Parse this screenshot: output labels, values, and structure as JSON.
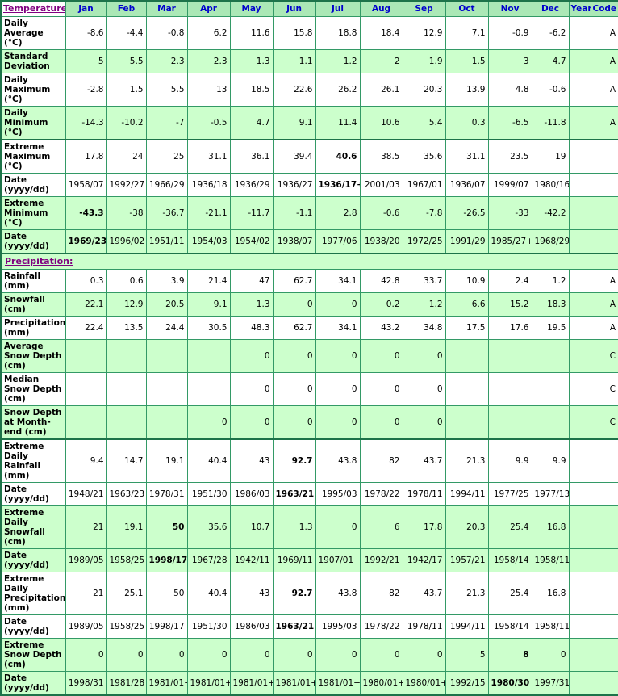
{
  "colors": {
    "frame_border": "#1d7349",
    "cell_border": "#339966",
    "header_bg": "#abe8b6",
    "stripe_bg": "#ccffcc",
    "label_blue": "#0000cc",
    "section_title_purple": "#800080"
  },
  "header": {
    "title": "Temperature:",
    "months": [
      "Jan",
      "Feb",
      "Mar",
      "Apr",
      "May",
      "Jun",
      "Jul",
      "Aug",
      "Sep",
      "Oct",
      "Nov",
      "Dec"
    ],
    "year": "Year",
    "code": "Code"
  },
  "sections": [
    {
      "id": "temperature",
      "rows": [
        {
          "label": "Daily Average (°C)",
          "shaded": false,
          "values": [
            "-8.6",
            "-4.4",
            "-0.8",
            "6.2",
            "11.6",
            "15.8",
            "18.8",
            "18.4",
            "12.9",
            "7.1",
            "-0.9",
            "-6.2"
          ],
          "year": "",
          "code": "A",
          "bold": [],
          "thick_top": false
        },
        {
          "label": "Standard Deviation",
          "shaded": true,
          "values": [
            "5",
            "5.5",
            "2.3",
            "2.3",
            "1.3",
            "1.1",
            "1.2",
            "2",
            "1.9",
            "1.5",
            "3",
            "4.7"
          ],
          "year": "",
          "code": "A",
          "bold": [],
          "thick_top": false
        },
        {
          "label": "Daily Maximum (°C)",
          "shaded": false,
          "values": [
            "-2.8",
            "1.5",
            "5.5",
            "13",
            "18.5",
            "22.6",
            "26.2",
            "26.1",
            "20.3",
            "13.9",
            "4.8",
            "-0.6"
          ],
          "year": "",
          "code": "A",
          "bold": [],
          "thick_top": false
        },
        {
          "label": "Daily Minimum (°C)",
          "shaded": true,
          "values": [
            "-14.3",
            "-10.2",
            "-7",
            "-0.5",
            "4.7",
            "9.1",
            "11.4",
            "10.6",
            "5.4",
            "0.3",
            "-6.5",
            "-11.8"
          ],
          "year": "",
          "code": "A",
          "bold": [],
          "thick_top": false
        },
        {
          "label": "Extreme Maximum (°C)",
          "shaded": false,
          "values": [
            "17.8",
            "24",
            "25",
            "31.1",
            "36.1",
            "39.4",
            "40.6",
            "38.5",
            "35.6",
            "31.1",
            "23.5",
            "19"
          ],
          "year": "",
          "code": "",
          "bold": [
            6
          ],
          "thick_top": true
        },
        {
          "label": "Date (yyyy/dd)",
          "shaded": false,
          "values": [
            "1958/07",
            "1992/27",
            "1966/29",
            "1936/18",
            "1936/29",
            "1936/27",
            "1936/17+",
            "2001/03",
            "1967/01",
            "1936/07",
            "1999/07",
            "1980/16"
          ],
          "year": "",
          "code": "",
          "bold": [
            6
          ],
          "thick_top": false
        },
        {
          "label": "Extreme Minimum (°C)",
          "shaded": true,
          "values": [
            "-43.3",
            "-38",
            "-36.7",
            "-21.1",
            "-11.7",
            "-1.1",
            "2.8",
            "-0.6",
            "-7.8",
            "-26.5",
            "-33",
            "-42.2"
          ],
          "year": "",
          "code": "",
          "bold": [
            0
          ],
          "thick_top": false
        },
        {
          "label": "Date (yyyy/dd)",
          "shaded": true,
          "values": [
            "1969/23",
            "1996/02",
            "1951/11",
            "1954/03",
            "1954/02",
            "1938/07",
            "1977/06",
            "1938/20",
            "1972/25",
            "1991/29",
            "1985/27+",
            "1968/29"
          ],
          "year": "",
          "code": "",
          "bold": [
            0
          ],
          "thick_top": false
        }
      ]
    },
    {
      "id": "precipitation",
      "title": "Precipitation:",
      "rows": [
        {
          "label": "Rainfall (mm)",
          "shaded": false,
          "values": [
            "0.3",
            "0.6",
            "3.9",
            "21.4",
            "47",
            "62.7",
            "34.1",
            "42.8",
            "33.7",
            "10.9",
            "2.4",
            "1.2"
          ],
          "year": "",
          "code": "A",
          "bold": [],
          "thick_top": false
        },
        {
          "label": "Snowfall (cm)",
          "shaded": true,
          "values": [
            "22.1",
            "12.9",
            "20.5",
            "9.1",
            "1.3",
            "0",
            "0",
            "0.2",
            "1.2",
            "6.6",
            "15.2",
            "18.3"
          ],
          "year": "",
          "code": "A",
          "bold": [],
          "thick_top": false
        },
        {
          "label": "Precipitation (mm)",
          "shaded": false,
          "values": [
            "22.4",
            "13.5",
            "24.4",
            "30.5",
            "48.3",
            "62.7",
            "34.1",
            "43.2",
            "34.8",
            "17.5",
            "17.6",
            "19.5"
          ],
          "year": "",
          "code": "A",
          "bold": [],
          "thick_top": false
        },
        {
          "label": "Average Snow Depth (cm)",
          "shaded": true,
          "values": [
            "",
            "",
            "",
            "",
            "0",
            "0",
            "0",
            "0",
            "0",
            "",
            "",
            ""
          ],
          "year": "",
          "code": "C",
          "bold": [],
          "thick_top": false
        },
        {
          "label": "Median Snow Depth (cm)",
          "shaded": false,
          "values": [
            "",
            "",
            "",
            "",
            "0",
            "0",
            "0",
            "0",
            "0",
            "",
            "",
            ""
          ],
          "year": "",
          "code": "C",
          "bold": [],
          "thick_top": false
        },
        {
          "label": "Snow Depth at Month-end (cm)",
          "shaded": true,
          "values": [
            "",
            "",
            "",
            "0",
            "0",
            "0",
            "0",
            "0",
            "0",
            "",
            "",
            ""
          ],
          "year": "",
          "code": "C",
          "bold": [],
          "thick_top": false
        },
        {
          "label": "Extreme Daily Rainfall (mm)",
          "shaded": false,
          "values": [
            "9.4",
            "14.7",
            "19.1",
            "40.4",
            "43",
            "92.7",
            "43.8",
            "82",
            "43.7",
            "21.3",
            "9.9",
            "9.9"
          ],
          "year": "",
          "code": "",
          "bold": [
            5
          ],
          "thick_top": true
        },
        {
          "label": "Date (yyyy/dd)",
          "shaded": false,
          "values": [
            "1948/21",
            "1963/23",
            "1978/31",
            "1951/30",
            "1986/03",
            "1963/21",
            "1995/03",
            "1978/22",
            "1978/11",
            "1994/11",
            "1977/25",
            "1977/13"
          ],
          "year": "",
          "code": "",
          "bold": [
            5
          ],
          "thick_top": false
        },
        {
          "label": "Extreme Daily Snowfall (cm)",
          "shaded": true,
          "values": [
            "21",
            "19.1",
            "50",
            "35.6",
            "10.7",
            "1.3",
            "0",
            "6",
            "17.8",
            "20.3",
            "25.4",
            "16.8"
          ],
          "year": "",
          "code": "",
          "bold": [
            2
          ],
          "thick_top": false
        },
        {
          "label": "Date (yyyy/dd)",
          "shaded": true,
          "values": [
            "1989/05",
            "1958/25",
            "1998/17",
            "1967/28",
            "1942/11",
            "1969/11",
            "1907/01+",
            "1992/21",
            "1942/17",
            "1957/21",
            "1958/14",
            "1958/11"
          ],
          "year": "",
          "code": "",
          "bold": [
            2
          ],
          "thick_top": false
        },
        {
          "label": "Extreme Daily Precipitation (mm)",
          "shaded": false,
          "values": [
            "21",
            "25.1",
            "50",
            "40.4",
            "43",
            "92.7",
            "43.8",
            "82",
            "43.7",
            "21.3",
            "25.4",
            "16.8"
          ],
          "year": "",
          "code": "",
          "bold": [
            5
          ],
          "thick_top": false
        },
        {
          "label": "Date (yyyy/dd)",
          "shaded": false,
          "values": [
            "1989/05",
            "1958/25",
            "1998/17",
            "1951/30",
            "1986/03",
            "1963/21",
            "1995/03",
            "1978/22",
            "1978/11",
            "1994/11",
            "1958/14",
            "1958/11"
          ],
          "year": "",
          "code": "",
          "bold": [
            5
          ],
          "thick_top": false
        },
        {
          "label": "Extreme Snow Depth (cm)",
          "shaded": true,
          "values": [
            "0",
            "0",
            "0",
            "0",
            "0",
            "0",
            "0",
            "0",
            "0",
            "5",
            "8",
            "0"
          ],
          "year": "",
          "code": "",
          "bold": [
            10
          ],
          "thick_top": false
        },
        {
          "label": "Date (yyyy/dd)",
          "shaded": true,
          "values": [
            "1998/31",
            "1981/28",
            "1981/01+",
            "1981/01+",
            "1981/01+",
            "1981/01+",
            "1981/01+",
            "1980/01+",
            "1980/01+",
            "1992/15",
            "1980/30",
            "1997/31"
          ],
          "year": "",
          "code": "",
          "bold": [
            10
          ],
          "thick_top": false
        }
      ]
    }
  ]
}
